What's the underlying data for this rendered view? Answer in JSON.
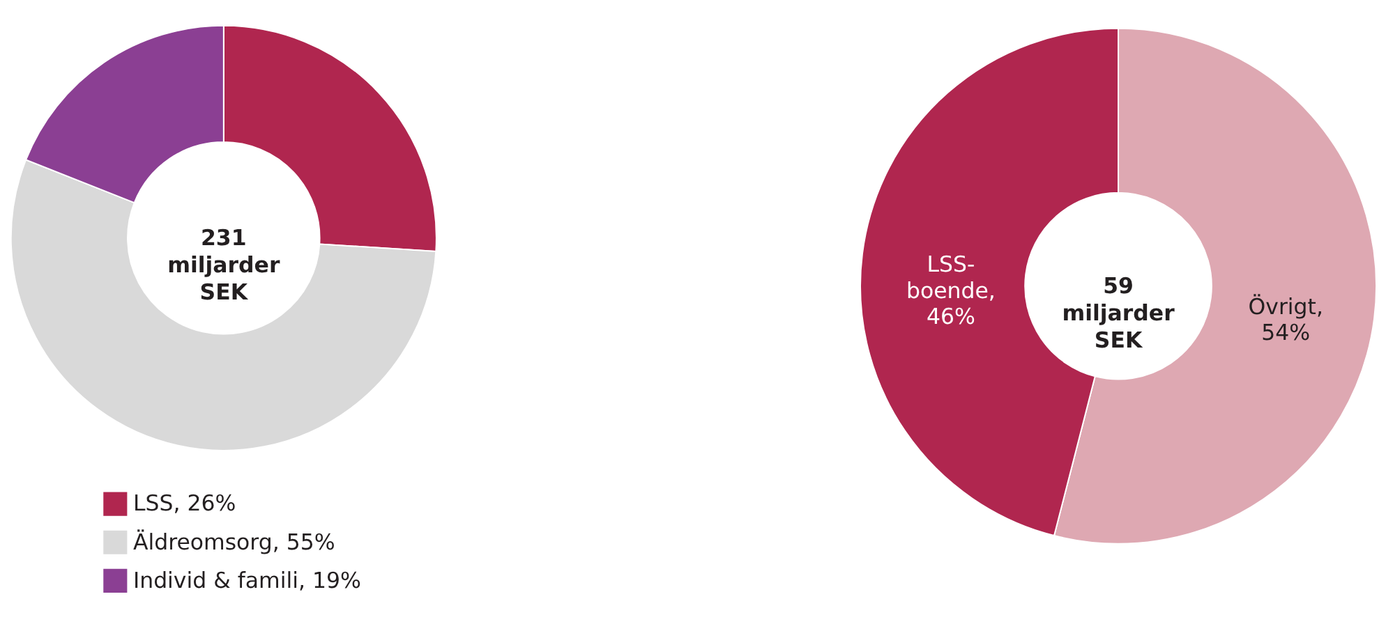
{
  "chart_data": [
    {
      "type": "donut",
      "categories": [
        "LSS, 26%",
        "Äldreomsorg, 55%",
        "Individ & famili, 19%"
      ],
      "values": [
        26,
        55,
        19
      ],
      "colors": [
        "#b0264f",
        "#d9d9d9",
        "#8b3f93"
      ],
      "annotations": [
        "231 miljarder SEK"
      ],
      "legend": "bottom left"
    },
    {
      "type": "donut",
      "categories": [
        "Övrigt, 54%",
        "LSS-boende, 46%"
      ],
      "values": [
        54,
        46
      ],
      "colors": [
        "#dea8b2",
        "#b0264f"
      ],
      "annotations": [
        "59 miljarder SEK"
      ],
      "legend": false
    }
  ]
}
